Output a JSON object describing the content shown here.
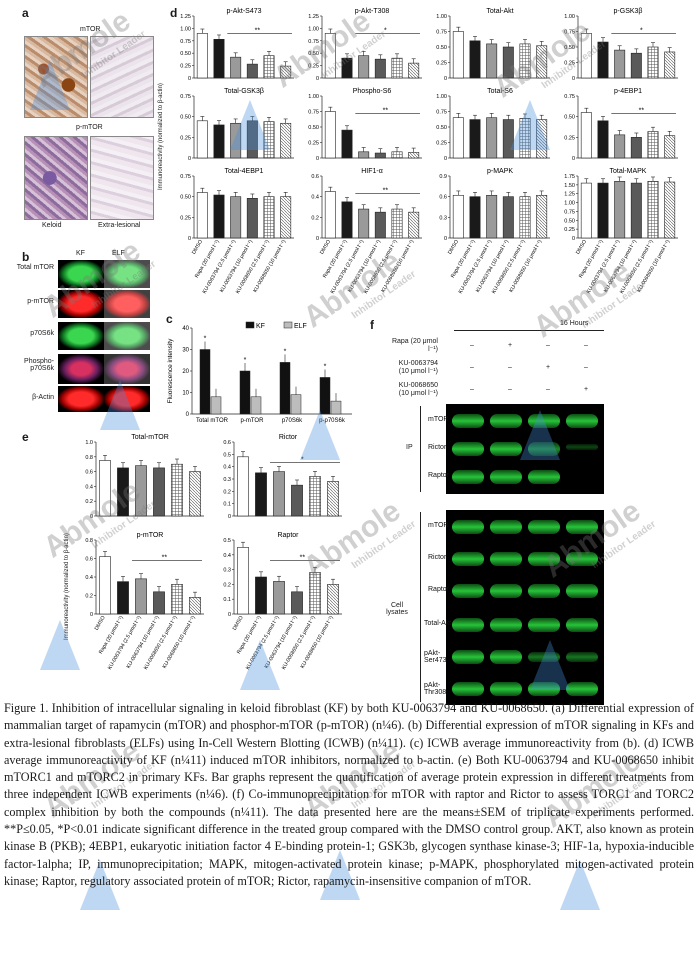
{
  "panel_a": {
    "letter": "a",
    "labels": [
      "mTOR",
      "p-mTOR",
      "Keloid",
      "Extra-lesional"
    ]
  },
  "panel_b": {
    "letter": "b",
    "cols": [
      "KF",
      "ELF"
    ],
    "rows": [
      "Total mTOR",
      "p-mTOR",
      "p70S6k",
      "Phospho-p70S6k",
      "β-Actin"
    ]
  },
  "panel_c": {
    "letter": "c",
    "ylabel": "Fluorescence intensity",
    "legend": [
      "KF",
      "ELF"
    ],
    "chart_data": {
      "type": "bar",
      "categories": [
        "Total mTOR",
        "p-mTOR",
        "p70S6k",
        "p-p70S6k"
      ],
      "series": [
        {
          "name": "KF",
          "values": [
            30,
            20,
            24,
            17
          ]
        },
        {
          "name": "ELF",
          "values": [
            8,
            8,
            9,
            6
          ]
        }
      ],
      "ylim": [
        0,
        40
      ],
      "yticks": [
        "0",
        "10",
        "20",
        "30",
        "40"
      ],
      "sig": [
        "*",
        "*",
        "*",
        "*"
      ]
    }
  },
  "panel_d": {
    "letter": "d",
    "ylabel": "Immunoreactivity (normalized to β-actin)",
    "xcats": [
      "DMSO",
      "Rapa (20 μmol l⁻¹)",
      "KU-0063794 (2.5 μmol l⁻¹)",
      "KU-0063794 (10 μmol l⁻¹)",
      "KU-0068650 (2.5 μmol l⁻¹)",
      "KU-0068650 (10 μmol l⁻¹)"
    ],
    "charts": [
      {
        "title": "p-Akt-S473",
        "values": [
          0.9,
          0.78,
          0.42,
          0.28,
          0.45,
          0.24
        ],
        "ylim": [
          0,
          1.25
        ],
        "yticks": [
          "0",
          "0.25",
          "0.50",
          "0.75",
          "1.00",
          "1.25"
        ],
        "sig": "**"
      },
      {
        "title": "p-Akt-T308",
        "values": [
          0.9,
          0.4,
          0.45,
          0.38,
          0.4,
          0.3
        ],
        "ylim": [
          0,
          1.25
        ],
        "yticks": [
          "0",
          "0.25",
          "0.50",
          "0.75",
          "1.00",
          "1.25"
        ],
        "sig": "*"
      },
      {
        "title": "Total-Akt",
        "values": [
          0.75,
          0.6,
          0.55,
          0.5,
          0.55,
          0.52
        ],
        "ylim": [
          0,
          1.0
        ],
        "yticks": [
          "0",
          "0.25",
          "0.50",
          "0.75",
          "1.00"
        ],
        "sig": ""
      },
      {
        "title": "p-GSK3β",
        "values": [
          0.72,
          0.58,
          0.45,
          0.4,
          0.5,
          0.42
        ],
        "ylim": [
          0,
          1.0
        ],
        "yticks": [
          "0",
          "0.25",
          "0.50",
          "0.75",
          "1.00"
        ],
        "sig": "*"
      },
      {
        "title": "Total-GSK3β",
        "values": [
          0.45,
          0.4,
          0.42,
          0.45,
          0.44,
          0.42
        ],
        "ylim": [
          0,
          0.75
        ],
        "yticks": [
          "0",
          "0.25",
          "0.50",
          "0.75"
        ],
        "sig": ""
      },
      {
        "title": "Phospho-S6",
        "values": [
          0.75,
          0.45,
          0.1,
          0.08,
          0.1,
          0.09
        ],
        "ylim": [
          0,
          1.0
        ],
        "yticks": [
          "0",
          "0.25",
          "0.50",
          "0.75",
          "1.00"
        ],
        "sig": "**"
      },
      {
        "title": "Total-S6",
        "values": [
          0.65,
          0.62,
          0.65,
          0.62,
          0.64,
          0.62
        ],
        "ylim": [
          0,
          1.0
        ],
        "yticks": [
          "0",
          "0.25",
          "0.50",
          "0.75",
          "1.00"
        ],
        "sig": ""
      },
      {
        "title": "p-4EBP1",
        "values": [
          0.55,
          0.45,
          0.28,
          0.25,
          0.32,
          0.27
        ],
        "ylim": [
          0,
          0.75
        ],
        "yticks": [
          "0",
          "0.25",
          "0.50",
          "0.75"
        ],
        "sig": "**"
      },
      {
        "title": "Total-4EBP1",
        "values": [
          0.55,
          0.52,
          0.5,
          0.48,
          0.5,
          0.5
        ],
        "ylim": [
          0,
          0.75
        ],
        "yticks": [
          "0",
          "0.25",
          "0.50",
          "0.75"
        ],
        "sig": ""
      },
      {
        "title": "HIF1-α",
        "values": [
          0.45,
          0.35,
          0.28,
          0.25,
          0.28,
          0.25
        ],
        "ylim": [
          0,
          0.6
        ],
        "yticks": [
          "0",
          "0.2",
          "0.4",
          "0.6"
        ],
        "sig": "**"
      },
      {
        "title": "p-MAPK",
        "values": [
          0.62,
          0.6,
          0.62,
          0.6,
          0.6,
          0.62
        ],
        "ylim": [
          0,
          0.9
        ],
        "yticks": [
          "0",
          "0.3",
          "0.6",
          "0.9"
        ],
        "sig": ""
      },
      {
        "title": "Total-MAPK",
        "values": [
          1.55,
          1.55,
          1.6,
          1.55,
          1.6,
          1.58
        ],
        "ylim": [
          0,
          1.75
        ],
        "yticks": [
          "0",
          "0.25",
          "0.50",
          "0.75",
          "1.00",
          "1.25",
          "1.50",
          "1.75"
        ],
        "sig": ""
      }
    ]
  },
  "panel_e": {
    "letter": "e",
    "ylabel": "Immunoreactivity (normalized to β-actin)",
    "xcats": [
      "DMSO",
      "Rapa (20 μmol l⁻¹)",
      "KU-0063794 (2.5 μmol l⁻¹)",
      "KU-0063794 (10 μmol l⁻¹)",
      "KU-0068650 (2.5 μmol l⁻¹)",
      "KU-0068650 (10 μmol l⁻¹)"
    ],
    "charts": [
      {
        "title": "Total-mTOR",
        "values": [
          0.75,
          0.65,
          0.68,
          0.65,
          0.7,
          0.6
        ],
        "ylim": [
          0,
          1.0
        ],
        "yticks": [
          "0",
          "0.2",
          "0.4",
          "0.6",
          "0.8",
          "1.0"
        ],
        "sig": ""
      },
      {
        "title": "Rictor",
        "values": [
          0.48,
          0.35,
          0.36,
          0.25,
          0.32,
          0.28
        ],
        "ylim": [
          0,
          0.6
        ],
        "yticks": [
          "0",
          "0.1",
          "0.2",
          "0.3",
          "0.4",
          "0.5",
          "0.6"
        ],
        "sig": "*"
      },
      {
        "title": "p-mTOR",
        "values": [
          0.62,
          0.35,
          0.38,
          0.24,
          0.32,
          0.18
        ],
        "ylim": [
          0,
          0.8
        ],
        "yticks": [
          "0",
          "0.2",
          "0.4",
          "0.6",
          "0.8"
        ],
        "sig": "**"
      },
      {
        "title": "Raptor",
        "values": [
          0.45,
          0.25,
          0.22,
          0.15,
          0.28,
          0.2
        ],
        "ylim": [
          0,
          0.5
        ],
        "yticks": [
          "0",
          "0.1",
          "0.2",
          "0.3",
          "0.4",
          "0.5"
        ],
        "sig": "**"
      }
    ]
  },
  "panel_f": {
    "letter": "f",
    "time": "16 Hours",
    "treatments": [
      {
        "label": "Rapa (20 μmol l⁻¹)",
        "marks": [
          "–",
          "+",
          "–",
          "–"
        ]
      },
      {
        "label": "KU-0063794 (10 μmol l⁻¹)",
        "marks": [
          "–",
          "–",
          "+",
          "–"
        ]
      },
      {
        "label": "KU-0068650 (10 μmol l⁻¹)",
        "marks": [
          "–",
          "–",
          "–",
          "+"
        ]
      }
    ],
    "ip_label": "IP",
    "ip_rows": [
      "mTOR",
      "Rictor",
      "Raptor"
    ],
    "lysate_label": "Cell lysates",
    "lysate_rows": [
      "mTOR",
      "Rictor",
      "Raptor",
      "Total-Akt",
      "pAkt-Ser473",
      "pAkt-Thr308"
    ]
  },
  "watermark": {
    "brand": "Abmole",
    "sub": "Inhibitor Leader"
  },
  "caption": "Figure 1. Inhibition of intracellular signaling in keloid fibroblast (KF) by both KU-0063794 and KU-0068650. (a) Differential expression of mammalian target of rapamycin (mTOR) and phosphor-mTOR (p-mTOR) (n¼6). (b) Differential expression of mTOR signaling in KFs and extra-lesional fibroblasts (ELFs) using In-Cell Western Blotting (ICWB) (n¼11). (c) ICWB average immunoreactivity from (b). (d) ICWB average immunoreactivity of KF (n¼11) induced mTOR inhibitors, normalized to b-actin. (e) Both KU-0063794 and KU-0068650 inhibit mTORC1 and mTORC2 in primary KFs. Bar graphs represent the quantification of average protein expression in different treatments from three independent ICWB experiments (n¼6). (f) Co-immunoprecipitation for mTOR with raptor and Rictor to assess TORC1 and TORC2 complex inhibition by both the compounds (n¼11). The data presented here are the means±SEM of triplicate experiments performed. **P≤0.05, *P<0.01 indicate significant difference in the treated group compared with the DMSO control group. AKT, also known as protein kinase B (PKB); 4EBP1, eukaryotic initiation factor 4 E-binding protein-1; GSK3b, glycogen synthase kinase-3; HIF-1a, hypoxia-inducible factor-1alpha; IP, immunoprecipitation; MAPK, mitogen-activated protein kinase; p-MAPK, phosphorylated mitogen-activated protein kinase; Raptor, regulatory associated protein of mTOR; Rictor, rapamycin-insensitive companion of mTOR."
}
